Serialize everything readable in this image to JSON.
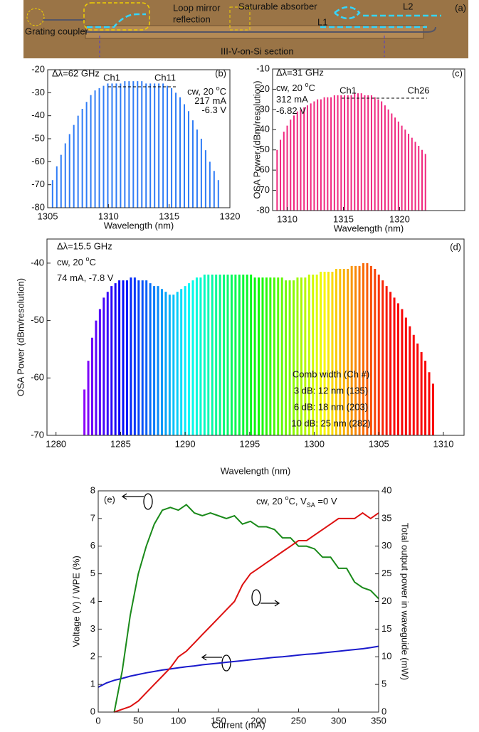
{
  "photo": {
    "panel_label": "(a)",
    "labels": [
      "Grating coupler",
      "Loop mirror",
      "reflection",
      "Saturable absorber",
      "L1",
      "L2",
      "III-V-on-Si section"
    ]
  },
  "chart_data": [
    {
      "type": "spectrum",
      "panel_label": "(b)",
      "xlabel": "Wavelength (nm)",
      "spacing_label": "Δλ=62 GHz",
      "channels": [
        "Ch1",
        "Ch11"
      ],
      "notes": [
        [
          "cw, 20 ",
          "o",
          "C"
        ],
        [
          "217 mA"
        ],
        [
          "-6.3 V"
        ]
      ],
      "color": "#2f7cf6",
      "x": [
        1305.4,
        1305.75,
        1306.1,
        1306.45,
        1306.8,
        1307.15,
        1307.5,
        1307.85,
        1308.2,
        1308.55,
        1308.9,
        1309.25,
        1309.6,
        1309.95,
        1310.3,
        1310.65,
        1311,
        1311.35,
        1311.7,
        1312.05,
        1312.4,
        1312.75,
        1313.1,
        1313.45,
        1313.8,
        1314.15,
        1314.5,
        1314.85,
        1315.2,
        1315.55,
        1315.9,
        1316.25,
        1316.6,
        1316.95,
        1317.3,
        1317.65,
        1318,
        1318.35,
        1318.7,
        1319.05
      ],
      "values": [
        -68,
        -62,
        -57,
        -52,
        -48,
        -44,
        -40,
        -37,
        -34,
        -31,
        -29,
        -28,
        -27,
        -26,
        -26,
        -26,
        -26,
        -25,
        -25,
        -25,
        -25,
        -25,
        -26,
        -26,
        -26,
        -26,
        -26,
        -27,
        -28,
        -30,
        -32,
        -35,
        -38,
        -42,
        -46,
        -50,
        -55,
        -60,
        -64,
        -68
      ],
      "xlim": [
        1305,
        1320
      ],
      "xticks": [
        1305,
        1310,
        1315,
        1320
      ],
      "ylim": [
        -80,
        -20
      ],
      "yticks": [
        -80,
        -70,
        -60,
        -50,
        -40,
        -30,
        -20
      ]
    },
    {
      "type": "spectrum",
      "panel_label": "(c)",
      "xlabel": "Wavelength (nm)",
      "ylabel": "OSA Power (dBm/resolution)",
      "spacing_label": "Δλ=31 GHz",
      "channels": [
        "Ch1",
        "Ch26"
      ],
      "notes": [
        [
          "cw, 20 ",
          "o",
          "C"
        ],
        [
          "312 mA"
        ],
        [
          "-6.82 V"
        ]
      ],
      "color": "#f0287f",
      "x": [
        1309.1,
        1309.4,
        1309.7,
        1310,
        1310.3,
        1310.6,
        1310.9,
        1311.2,
        1311.5,
        1311.8,
        1312.1,
        1312.4,
        1312.7,
        1313,
        1313.3,
        1313.6,
        1313.9,
        1314.2,
        1314.5,
        1314.8,
        1315.1,
        1315.4,
        1315.7,
        1316,
        1316.3,
        1316.6,
        1316.9,
        1317.2,
        1317.5,
        1317.8,
        1318.1,
        1318.4,
        1318.7,
        1319,
        1319.3,
        1319.6,
        1319.9,
        1320.2,
        1320.5,
        1320.8,
        1321.1,
        1321.4,
        1321.7,
        1322,
        1322.3
      ],
      "values": [
        -50,
        -45,
        -41,
        -38,
        -35,
        -33,
        -31,
        -30,
        -29,
        -28,
        -27,
        -26,
        -25,
        -25,
        -24,
        -24,
        -24,
        -23,
        -23,
        -23,
        -23,
        -23,
        -23,
        -22,
        -22,
        -22,
        -23,
        -23,
        -23,
        -24,
        -25,
        -26,
        -28,
        -30,
        -32,
        -34,
        -36,
        -38,
        -40,
        -42,
        -44,
        -46,
        -48,
        -50,
        -52
      ],
      "xlim": [
        1308.7,
        1325.8
      ],
      "xticks": [
        1310,
        1315,
        1320
      ],
      "ylim": [
        -80,
        -10
      ],
      "yticks": [
        -80,
        -70,
        -60,
        -50,
        -40,
        -30,
        -20,
        -10
      ]
    },
    {
      "type": "spectrum",
      "panel_label": "(d)",
      "xlabel": "Wavelength (nm)",
      "ylabel": "OSA Power (dBm/resolution)",
      "spacing_label": "Δλ=15.5 GHz",
      "notes": [
        [
          "cw, 20 ",
          "o",
          "C"
        ],
        [
          "74 mA, -7.8 V"
        ]
      ],
      "comb_width": [
        "Comb width (Ch #)",
        "3 dB: 12 nm (135)",
        "6 dB: 18 nm (203)",
        "10 dB: 25 nm (282)"
      ],
      "colormap": "rainbow",
      "x": [
        1282.2,
        1282.5,
        1282.8,
        1283.1,
        1283.4,
        1283.7,
        1284,
        1284.3,
        1284.6,
        1284.9,
        1285.2,
        1285.5,
        1285.8,
        1286.1,
        1286.4,
        1286.7,
        1287,
        1287.3,
        1287.6,
        1287.9,
        1288.2,
        1288.5,
        1288.8,
        1289.1,
        1289.4,
        1289.7,
        1290,
        1290.3,
        1290.6,
        1290.9,
        1291.2,
        1291.5,
        1291.8,
        1292.1,
        1292.4,
        1292.7,
        1293,
        1293.3,
        1293.6,
        1293.9,
        1294.2,
        1294.5,
        1294.8,
        1295.1,
        1295.4,
        1295.7,
        1296,
        1296.3,
        1296.6,
        1296.9,
        1297.2,
        1297.5,
        1297.8,
        1298.1,
        1298.4,
        1298.7,
        1299,
        1299.3,
        1299.6,
        1299.9,
        1300.2,
        1300.5,
        1300.8,
        1301.1,
        1301.4,
        1301.7,
        1302,
        1302.3,
        1302.6,
        1302.9,
        1303.2,
        1303.5,
        1303.8,
        1304.1,
        1304.4,
        1304.7,
        1305,
        1305.3,
        1305.6,
        1305.9,
        1306.2,
        1306.5,
        1306.8,
        1307.1,
        1307.4,
        1307.7,
        1308,
        1308.3,
        1308.6,
        1308.9,
        1309.2
      ],
      "values": [
        -62,
        -57,
        -53,
        -50,
        -48,
        -46,
        -45,
        -44,
        -43.5,
        -43,
        -43,
        -43,
        -42.5,
        -42.5,
        -43,
        -43,
        -43,
        -43.5,
        -44,
        -44,
        -44.5,
        -45,
        -45.5,
        -45.5,
        -45,
        -44.5,
        -44,
        -43.5,
        -43,
        -42.5,
        -42.5,
        -42,
        -42,
        -42,
        -42,
        -42,
        -42,
        -42,
        -42,
        -42,
        -42,
        -42,
        -42,
        -42,
        -42.5,
        -42.5,
        -42.5,
        -42.5,
        -42.5,
        -42.5,
        -42.5,
        -42.5,
        -43,
        -43,
        -43,
        -42.5,
        -42.5,
        -42.5,
        -42,
        -42,
        -42,
        -41.5,
        -41.5,
        -41.5,
        -41.5,
        -41,
        -41,
        -41,
        -41,
        -40.5,
        -40.5,
        -40.5,
        -40,
        -40,
        -40.5,
        -41,
        -42,
        -43,
        -44,
        -45,
        -46,
        -47,
        -48,
        -49.5,
        -51,
        -52.5,
        -54,
        -55.5,
        -57,
        -59,
        -61
      ],
      "xlim": [
        1279.3,
        1311.6
      ],
      "xticks": [
        1280,
        1285,
        1290,
        1295,
        1300,
        1305,
        1310
      ],
      "ylim": [
        -70,
        -35.8
      ],
      "yticks": [
        -70,
        -60,
        -50,
        -40
      ]
    },
    {
      "type": "line",
      "panel_label": "(e)",
      "xlabel": "Current (mA)",
      "ylabel": "Voltage (V) / WPE (%)",
      "y2label": "Total output power in waveguide (mW)",
      "notes": [
        [
          "cw, 20 ",
          "o",
          "C, V",
          "SA",
          " =0 V"
        ]
      ],
      "x": [
        0,
        10,
        20,
        30,
        40,
        50,
        60,
        70,
        80,
        90,
        100,
        110,
        120,
        130,
        140,
        150,
        160,
        170,
        180,
        190,
        200,
        210,
        220,
        230,
        240,
        250,
        260,
        270,
        280,
        290,
        300,
        310,
        320,
        330,
        340,
        350
      ],
      "series": [
        {
          "color": "#1a1acc",
          "values": [
            0.9,
            1.05,
            1.15,
            1.22,
            1.3,
            1.36,
            1.42,
            1.47,
            1.52,
            1.56,
            1.6,
            1.64,
            1.67,
            1.71,
            1.74,
            1.77,
            1.8,
            1.83,
            1.86,
            1.89,
            1.92,
            1.95,
            1.98,
            2.0,
            2.03,
            2.06,
            2.09,
            2.11,
            2.14,
            2.17,
            2.2,
            2.23,
            2.26,
            2.29,
            2.33,
            2.38
          ]
        },
        {
          "color": "#1a8a1a",
          "values": [
            null,
            null,
            0,
            1.5,
            3.5,
            5,
            6,
            6.8,
            7.3,
            7.4,
            7.3,
            7.5,
            7.2,
            7.1,
            7.2,
            7.1,
            7.0,
            7.1,
            6.8,
            6.9,
            6.7,
            6.7,
            6.6,
            6.3,
            6.3,
            6.0,
            6.0,
            5.9,
            5.6,
            5.6,
            5.2,
            5.2,
            4.7,
            4.5,
            4.4,
            4.1
          ]
        },
        {
          "color": "#dd1111",
          "axis": "y2",
          "values": [
            null,
            null,
            0,
            0.5,
            1,
            2,
            3.5,
            5,
            6.5,
            8,
            10,
            11,
            12.5,
            14,
            15.5,
            17,
            18.5,
            20,
            23,
            25,
            26,
            27,
            28,
            29,
            30,
            31,
            31,
            32,
            33,
            34,
            35,
            35,
            35,
            36,
            35,
            36
          ]
        }
      ],
      "xlim": [
        0,
        350
      ],
      "xticks": [
        0,
        50,
        100,
        150,
        200,
        250,
        300,
        350
      ],
      "ylim": [
        0,
        8
      ],
      "yticks": [
        0,
        1,
        2,
        3,
        4,
        5,
        6,
        7,
        8
      ],
      "y2lim": [
        0,
        40
      ],
      "y2ticks": [
        0,
        5,
        10,
        15,
        20,
        25,
        30,
        35,
        40
      ]
    }
  ]
}
